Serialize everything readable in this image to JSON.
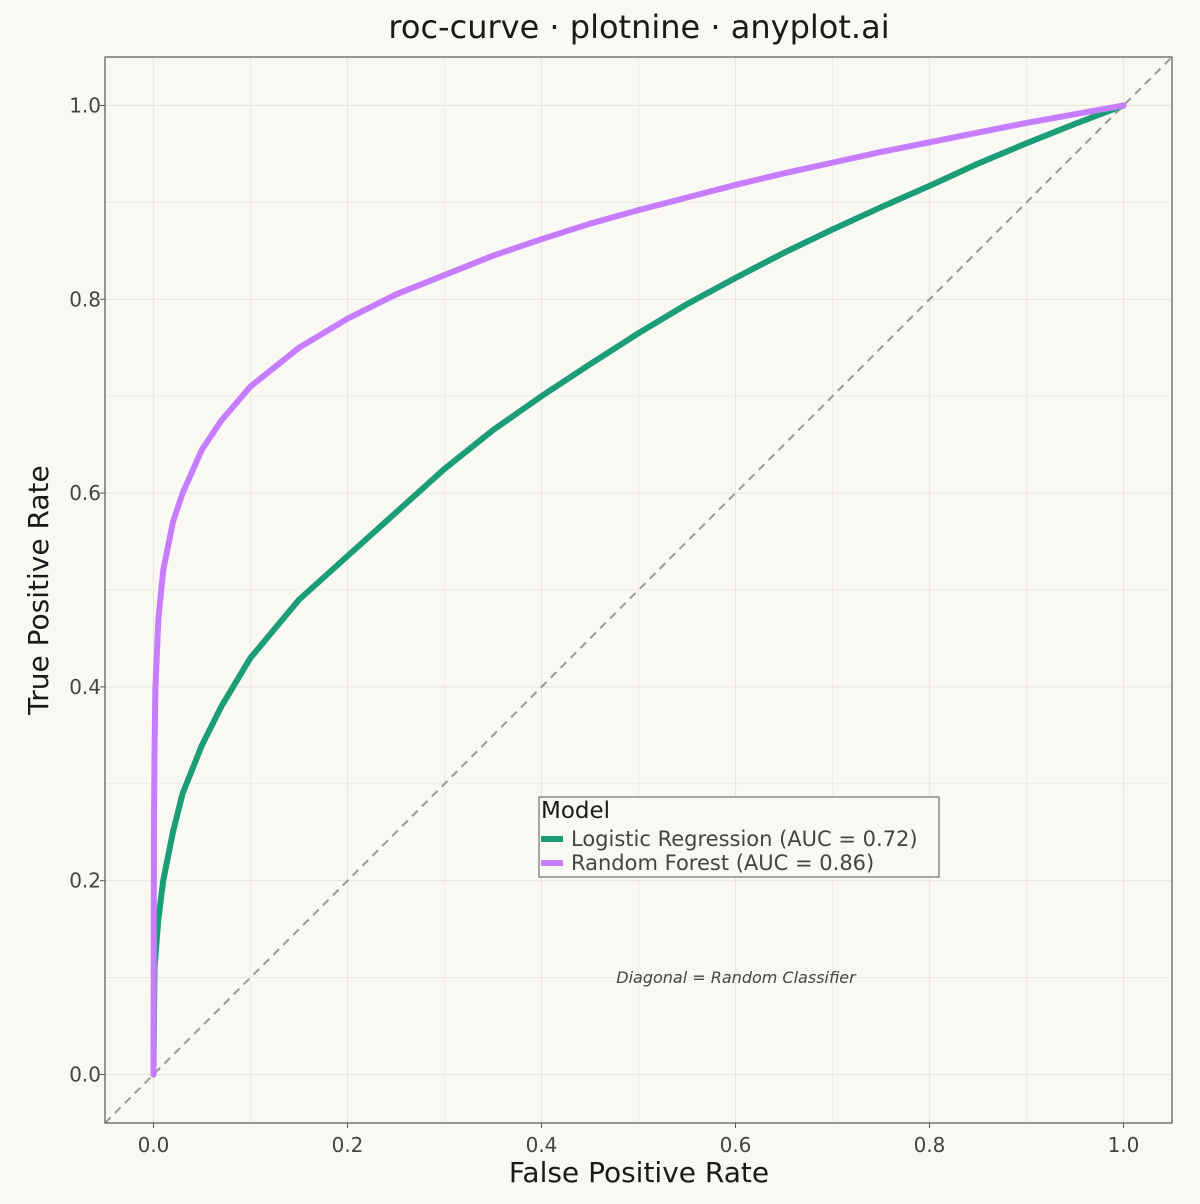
{
  "chart_data": {
    "type": "line",
    "title": "roc-curve · plotnine · anyplot.ai",
    "xlabel": "False Positive Rate",
    "ylabel": "True Positive Rate",
    "xlim": [
      -0.05,
      1.05
    ],
    "ylim": [
      -0.05,
      1.05
    ],
    "x_ticks": [
      "0.0",
      "0.2",
      "0.4",
      "0.6",
      "0.8",
      "1.0"
    ],
    "y_ticks": [
      "0.0",
      "0.2",
      "0.4",
      "0.6",
      "0.8",
      "1.0"
    ],
    "grid": true,
    "legend": {
      "title": "Model",
      "placement": "center-right",
      "entries": [
        "Logistic Regression (AUC = 0.72)",
        "Random Forest (AUC = 0.86)"
      ]
    },
    "annotation": "Diagonal = Random Classifier",
    "reference_line": {
      "style": "dashed",
      "color": "#999999",
      "points": [
        [
          -0.05,
          -0.05
        ],
        [
          1.05,
          1.05
        ]
      ]
    },
    "series": [
      {
        "name": "Logistic Regression (AUC = 0.72)",
        "color": "#1B9E77",
        "x": [
          0,
          0.001,
          0.005,
          0.01,
          0.02,
          0.03,
          0.05,
          0.07,
          0.1,
          0.15,
          0.2,
          0.25,
          0.3,
          0.35,
          0.4,
          0.45,
          0.5,
          0.55,
          0.6,
          0.65,
          0.7,
          0.75,
          0.8,
          0.85,
          0.9,
          0.95,
          1.0
        ],
        "y": [
          0,
          0.11,
          0.16,
          0.2,
          0.25,
          0.29,
          0.34,
          0.38,
          0.43,
          0.49,
          0.535,
          0.58,
          0.625,
          0.665,
          0.7,
          0.733,
          0.765,
          0.795,
          0.822,
          0.848,
          0.872,
          0.895,
          0.917,
          0.94,
          0.961,
          0.981,
          1.0
        ]
      },
      {
        "name": "Random Forest (AUC = 0.86)",
        "color": "#C77DFF",
        "x": [
          0,
          0.0005,
          0.001,
          0.002,
          0.005,
          0.01,
          0.02,
          0.03,
          0.05,
          0.07,
          0.1,
          0.15,
          0.2,
          0.25,
          0.3,
          0.35,
          0.4,
          0.45,
          0.5,
          0.55,
          0.6,
          0.65,
          0.7,
          0.75,
          0.8,
          0.85,
          0.9,
          0.95,
          1.0
        ],
        "y": [
          0,
          0.26,
          0.33,
          0.4,
          0.47,
          0.52,
          0.57,
          0.6,
          0.645,
          0.675,
          0.71,
          0.75,
          0.78,
          0.805,
          0.825,
          0.845,
          0.862,
          0.878,
          0.892,
          0.905,
          0.918,
          0.93,
          0.941,
          0.952,
          0.962,
          0.972,
          0.982,
          0.991,
          1.0
        ]
      }
    ]
  }
}
